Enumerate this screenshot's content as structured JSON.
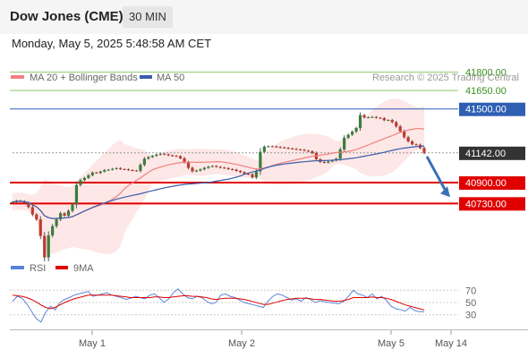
{
  "header": {
    "instrument": "Dow Jones (CME)",
    "interval": "30 MIN",
    "datetime": "Monday, May 5, 2025 5:48:58 AM CET"
  },
  "legend": {
    "ma20_label": "MA 20 + Bollinger Bands",
    "ma50_label": "MA 50",
    "credit": "Research © 2025 Trading Central"
  },
  "rsi_legend": {
    "rsi_label": "RSI",
    "ma_label": "9MA"
  },
  "colors": {
    "up": "#3a7d3a",
    "down": "#c0392b",
    "ma20": "#f08080",
    "ma50": "#3b5ea8",
    "bollinger_fill": "#fde3e3",
    "resistance_green": "#8fc66a",
    "resistance_blue": "#2f5fb3",
    "support_red": "#e00000",
    "arrow": "#3b6fb6",
    "rsi": "#5b84d8",
    "rsi_ma": "#e00000"
  },
  "chart_data": [
    {
      "type": "candlestick",
      "x_axis": {
        "ticks": [
          "May 1",
          "May 2",
          "May 5",
          "May 14"
        ]
      },
      "y_range": [
        40200,
        41950
      ],
      "levels": [
        {
          "value": 41800.0,
          "label": "41800.00",
          "kind": "resistance",
          "color": "#8fc66a"
        },
        {
          "value": 41650.0,
          "label": "41650.00",
          "kind": "resistance",
          "color": "#8fc66a"
        },
        {
          "value": 41500.0,
          "label": "41500.00",
          "kind": "pivot",
          "color": "#2f5fb3"
        },
        {
          "value": 41142.0,
          "label": "41142.00",
          "kind": "last-price",
          "color": "#333333"
        },
        {
          "value": 40900.0,
          "label": "40900.00",
          "kind": "support",
          "color": "#e00000"
        },
        {
          "value": 40730.0,
          "label": "40730.00",
          "kind": "support",
          "color": "#e00000"
        }
      ],
      "forecast_arrow": {
        "from": 41142,
        "to": 40760
      },
      "close": [
        40742,
        40752,
        40748,
        40735,
        40700,
        40640,
        40600,
        40465,
        40290,
        40470,
        40545,
        40600,
        40650,
        40630,
        40670,
        40720,
        40880,
        40920,
        40938,
        40960,
        40982,
        40978,
        40990,
        41002,
        41005,
        41012,
        41018,
        41010,
        41008,
        41002,
        40998,
        40995,
        41045,
        41095,
        41108,
        41118,
        41128,
        41135,
        41130,
        41122,
        41118,
        41115,
        41098,
        41065,
        41020,
        40992,
        40998,
        41008,
        41020,
        41030,
        41035,
        41028,
        41022,
        41018,
        41010,
        41005,
        40995,
        40985,
        40972,
        40968,
        40942,
        40992,
        41150,
        41192,
        41196,
        41195,
        41190,
        41186,
        41183,
        41178,
        41175,
        41170,
        41167,
        41160,
        41155,
        41140,
        41090,
        41068,
        41062,
        41072,
        41080,
        41095,
        41170,
        41265,
        41290,
        41315,
        41345,
        41450,
        41430,
        41432,
        41435,
        41428,
        41425,
        41408,
        41410,
        41392,
        41358,
        41318,
        41270,
        41236,
        41212,
        41208,
        41182,
        41142
      ]
    },
    {
      "type": "line",
      "name": "RSI",
      "y_ticks": [
        70,
        50,
        30
      ],
      "y_range": [
        15,
        85
      ],
      "series": [
        {
          "name": "RSI",
          "values": [
            52,
            60,
            57,
            48,
            36,
            24,
            18,
            34,
            44,
            38,
            50,
            55,
            58,
            62,
            64,
            66,
            68,
            60,
            62,
            64,
            66,
            62,
            60,
            58,
            55,
            57,
            60,
            58,
            56,
            62,
            64,
            58,
            50,
            56,
            66,
            72,
            64,
            58,
            56,
            60,
            58,
            52,
            48,
            50,
            62,
            64,
            60,
            58,
            54,
            50,
            48,
            46,
            44,
            42,
            52,
            60,
            64,
            62,
            58,
            54,
            56,
            52,
            58,
            55,
            50,
            53,
            51,
            50,
            49,
            48,
            52,
            60,
            70,
            64,
            62,
            58,
            64,
            56,
            60,
            54,
            44,
            40,
            38,
            36,
            42,
            37,
            35,
            35
          ]
        },
        {
          "name": "9MA",
          "values": [
            62,
            61,
            60,
            58,
            55,
            51,
            46,
            42,
            40,
            42,
            46,
            50,
            53,
            56,
            58,
            60,
            62,
            62,
            62,
            62,
            62,
            62,
            61,
            60,
            59,
            58,
            58,
            58,
            58,
            58,
            59,
            59,
            58,
            58,
            59,
            60,
            61,
            61,
            60,
            60,
            59,
            58,
            56,
            55,
            56,
            57,
            57,
            57,
            56,
            55,
            53,
            51,
            49,
            47,
            47,
            49,
            51,
            53,
            55,
            56,
            57,
            57,
            57,
            56,
            55,
            55,
            54,
            53,
            52,
            52,
            53,
            55,
            58,
            58,
            58,
            58,
            59,
            58,
            58,
            57,
            55,
            52,
            49,
            46,
            44,
            42,
            40,
            38
          ]
        }
      ]
    }
  ]
}
